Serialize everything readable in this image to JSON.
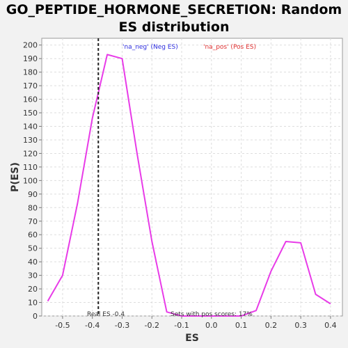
{
  "chart_data": {
    "type": "line",
    "title_line1": "GO_PEPTIDE_HORMONE_SECRETION: Random",
    "title_line2": "ES distribution",
    "xlabel": "ES",
    "ylabel": "P(ES)",
    "xlim": [
      -0.57,
      0.44
    ],
    "ylim": [
      0,
      205
    ],
    "xticks": [
      -0.5,
      -0.4,
      -0.3,
      -0.2,
      -0.1,
      0.0,
      0.1,
      0.2,
      0.3,
      0.4
    ],
    "yticks": [
      0,
      10,
      20,
      30,
      40,
      50,
      60,
      70,
      80,
      90,
      100,
      110,
      120,
      130,
      140,
      150,
      160,
      170,
      180,
      190,
      200
    ],
    "grid": true,
    "series": [
      {
        "color": "#e83be8",
        "x": [
          -0.55,
          -0.5,
          -0.45,
          -0.4,
          -0.35,
          -0.3,
          -0.25,
          -0.2,
          -0.15,
          -0.1,
          -0.05,
          0.0,
          0.05,
          0.1,
          0.15,
          0.2,
          0.25,
          0.3,
          0.35,
          0.4
        ],
        "y": [
          11,
          30,
          83,
          146,
          193,
          190,
          120,
          55,
          3,
          0,
          0,
          0,
          0,
          0,
          4,
          33,
          55,
          54,
          16,
          9
        ]
      }
    ],
    "real_es": -0.38,
    "legend": [
      {
        "label": "'na_neg' (Neg ES)",
        "color": "#2e2ee0"
      },
      {
        "label": "'na_pos' (Pos ES)",
        "color": "#e03030"
      }
    ],
    "annotations": {
      "real_es": "Real ES -0.4",
      "pos_scores": "Sets with pos scores: 17%"
    }
  }
}
